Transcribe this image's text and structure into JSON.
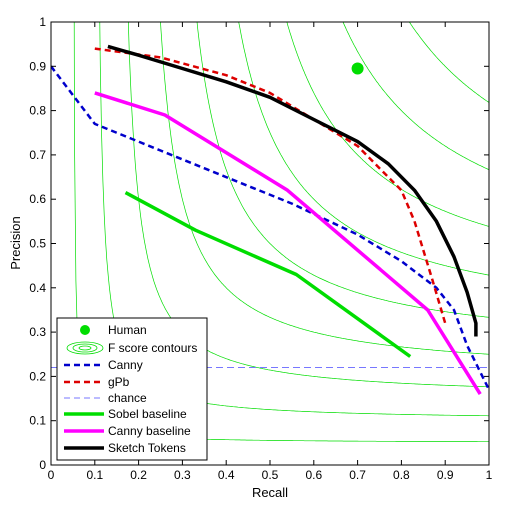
{
  "chart_data": {
    "type": "line",
    "xlabel": "Recall",
    "ylabel": "Precision",
    "xlim": [
      0,
      1
    ],
    "ylim": [
      0,
      1
    ],
    "xticks": [
      "0",
      "0.1",
      "0.2",
      "0.3",
      "0.4",
      "0.5",
      "0.6",
      "0.7",
      "0.8",
      "0.9",
      "1"
    ],
    "yticks": [
      "0",
      "0.1",
      "0.2",
      "0.3",
      "0.4",
      "0.5",
      "0.6",
      "0.7",
      "0.8",
      "0.9",
      "1"
    ],
    "grid": false,
    "legend_position": "bottom-left",
    "f_score_contours": {
      "color": "#00dd00",
      "levels": [
        0.1,
        0.2,
        0.3,
        0.4,
        0.5,
        0.6,
        0.7,
        0.8,
        0.9
      ]
    },
    "human_point": {
      "x": 0.7,
      "y": 0.895
    },
    "series": [
      {
        "name": "Canny",
        "color": "#0000cc",
        "style": "dashed",
        "x": [
          0.0,
          0.1,
          0.25,
          0.4,
          0.55,
          0.7,
          0.8,
          0.88,
          0.92,
          0.95,
          1.0
        ],
        "y": [
          0.9,
          0.77,
          0.71,
          0.65,
          0.59,
          0.52,
          0.46,
          0.4,
          0.35,
          0.27,
          0.17
        ]
      },
      {
        "name": "gPb",
        "color": "#dd0000",
        "style": "dashed",
        "x": [
          0.1,
          0.25,
          0.4,
          0.5,
          0.6,
          0.7,
          0.75,
          0.8,
          0.83,
          0.87,
          0.9
        ],
        "y": [
          0.94,
          0.92,
          0.88,
          0.84,
          0.78,
          0.72,
          0.67,
          0.62,
          0.55,
          0.42,
          0.32
        ]
      },
      {
        "name": "chance",
        "color": "#7777ff",
        "style": "thin-dashed",
        "x": [
          0.0,
          1.0
        ],
        "y": [
          0.22,
          0.22
        ]
      },
      {
        "name": "Sobel baseline",
        "color": "#00dd00",
        "style": "solid",
        "x": [
          0.17,
          0.33,
          0.56,
          0.82
        ],
        "y": [
          0.615,
          0.53,
          0.43,
          0.245
        ]
      },
      {
        "name": "Canny baseline",
        "color": "#ff00ff",
        "style": "solid",
        "x": [
          0.1,
          0.26,
          0.54,
          0.86,
          0.98
        ],
        "y": [
          0.84,
          0.79,
          0.62,
          0.35,
          0.16
        ]
      },
      {
        "name": "Sketch Tokens",
        "color": "#000000",
        "style": "solid",
        "x": [
          0.13,
          0.2,
          0.3,
          0.4,
          0.5,
          0.6,
          0.7,
          0.77,
          0.83,
          0.88,
          0.92,
          0.95,
          0.97,
          0.97
        ],
        "y": [
          0.945,
          0.925,
          0.895,
          0.865,
          0.83,
          0.78,
          0.73,
          0.68,
          0.62,
          0.55,
          0.47,
          0.39,
          0.32,
          0.29
        ]
      }
    ],
    "legend": [
      {
        "key": "human",
        "label": "Human"
      },
      {
        "key": "contours",
        "label": "F score contours"
      },
      {
        "key": "canny",
        "label": "Canny"
      },
      {
        "key": "gpb",
        "label": "gPb"
      },
      {
        "key": "chance",
        "label": "chance"
      },
      {
        "key": "sobel",
        "label": "Sobel baseline"
      },
      {
        "key": "canny-baseline",
        "label": "Canny baseline"
      },
      {
        "key": "sketch",
        "label": "Sketch Tokens"
      }
    ]
  }
}
